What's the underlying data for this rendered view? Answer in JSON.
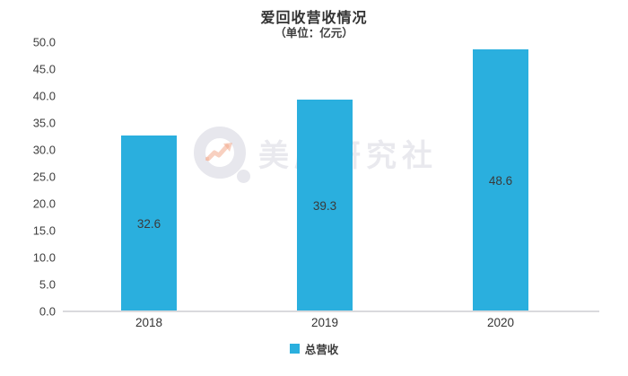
{
  "chart": {
    "title": "爱回收营收情况",
    "subtitle": "（单位：亿元）",
    "legend_label": "总营收",
    "watermark_text": "美股研究社",
    "colors": {
      "bar": "#2aafde",
      "axis_line": "#dadadd",
      "label_text": "#3a3a3a",
      "watermark": "#e9e9ee",
      "watermark_arrow": "#f2a98c"
    }
  },
  "chart_data": {
    "type": "bar",
    "title": "爱回收营收情况",
    "subtitle": "（单位：亿元）",
    "categories": [
      "2018",
      "2019",
      "2020"
    ],
    "series": [
      {
        "name": "总营收",
        "values": [
          32.6,
          39.3,
          48.6
        ]
      }
    ],
    "xlabel": "",
    "ylabel": "",
    "ylim": [
      0,
      50
    ],
    "ytick_step": 5,
    "yticks": [
      "50.0",
      "45.0",
      "40.0",
      "35.0",
      "30.0",
      "25.0",
      "20.0",
      "15.0",
      "10.0",
      "5.0",
      "0.0"
    ],
    "grid": false,
    "legend_position": "bottom",
    "value_labels": "inside-center"
  }
}
